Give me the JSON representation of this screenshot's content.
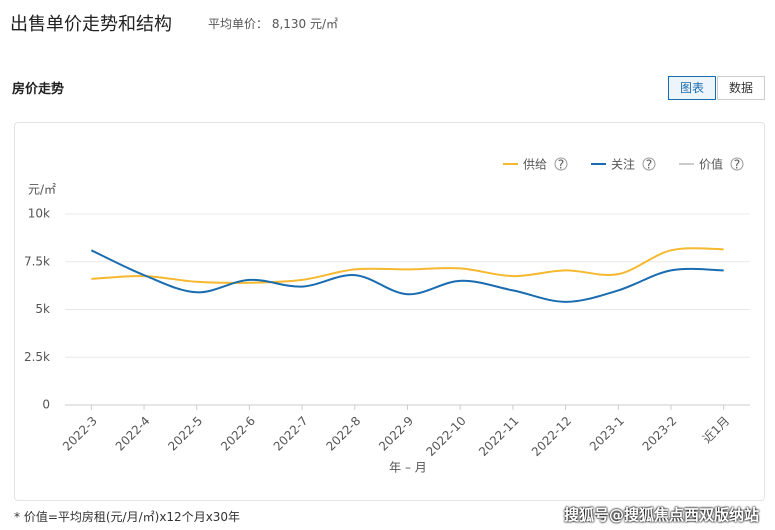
{
  "header": {
    "title": "出售单价走势和结构",
    "avg_price": "平均单价： 8,130 元/㎡"
  },
  "section": {
    "title": "房价走势",
    "buttons": [
      "图表",
      "数据"
    ]
  },
  "chart_data": {
    "type": "line",
    "y_unit": "元/㎡",
    "x_label": "年 – 月",
    "categories": [
      "2022-3",
      "2022-4",
      "2022-5",
      "2022-6",
      "2022-7",
      "2022-8",
      "2022-9",
      "2022-10",
      "2022-11",
      "2022-12",
      "2023-1",
      "2023-2",
      "近1月"
    ],
    "series": [
      {
        "name": "供给",
        "color": "#f5b82e",
        "values": [
          6600,
          6750,
          6450,
          6400,
          6550,
          7100,
          7100,
          7150,
          6750,
          7050,
          6850,
          8100,
          8150
        ]
      },
      {
        "name": "关注",
        "color": "#1a6cb0",
        "values": [
          8100,
          6800,
          5900,
          6550,
          6200,
          6800,
          5800,
          6500,
          6000,
          5400,
          6000,
          7050,
          7050
        ]
      }
    ],
    "legend_off": {
      "name": "价值",
      "color": "#cccccc"
    },
    "help_icon": "?",
    "ylim": [
      0,
      10000
    ],
    "yticks": [
      0,
      {
        "value": 2500,
        "label": "2.5k"
      },
      {
        "value": 5000,
        "label": "5k"
      },
      {
        "value": 7500,
        "label": "7.5k"
      },
      {
        "value": 10000,
        "label": "10k"
      }
    ],
    "grid": true
  },
  "footnote": "* 价值=平均房租(元/月/㎡)x12个月x30年",
  "watermark": "搜狐号@搜狐焦点西双版纳站"
}
